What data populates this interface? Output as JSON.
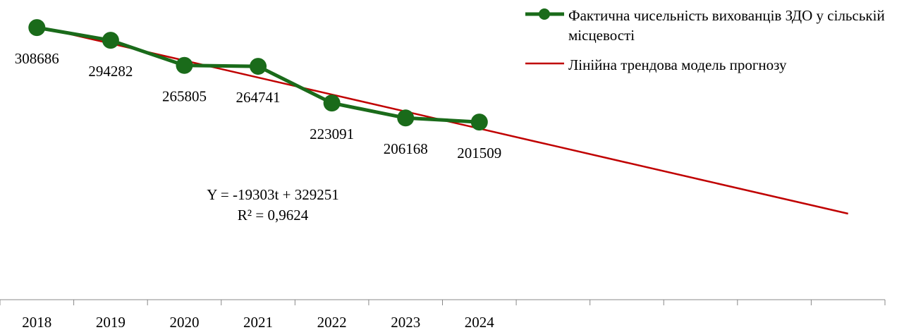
{
  "chart_data": {
    "type": "line",
    "categories": [
      "2018",
      "2019",
      "2020",
      "2021",
      "2022",
      "2023",
      "2024",
      null,
      null,
      null,
      null,
      null
    ],
    "series": [
      {
        "name": "Фактична чисельність вихованців ЗДО у сільській місцевості",
        "color": "#1a6b1a",
        "values": [
          308686,
          294282,
          265805,
          264741,
          223091,
          206168,
          201509,
          null,
          null,
          null,
          null,
          null
        ]
      },
      {
        "name": "Лінійна трендова модель прогнозу",
        "color": "#c00000",
        "values": [
          309948,
          290645,
          271342,
          252039,
          232736,
          213433,
          194130,
          174827,
          155524,
          136221,
          116918,
          97615
        ]
      }
    ],
    "annotations": [
      "Y = -19303t + 329251",
      "R² = 0,9624"
    ],
    "ylim": [
      0,
      340000
    ],
    "legend": "top-right"
  }
}
